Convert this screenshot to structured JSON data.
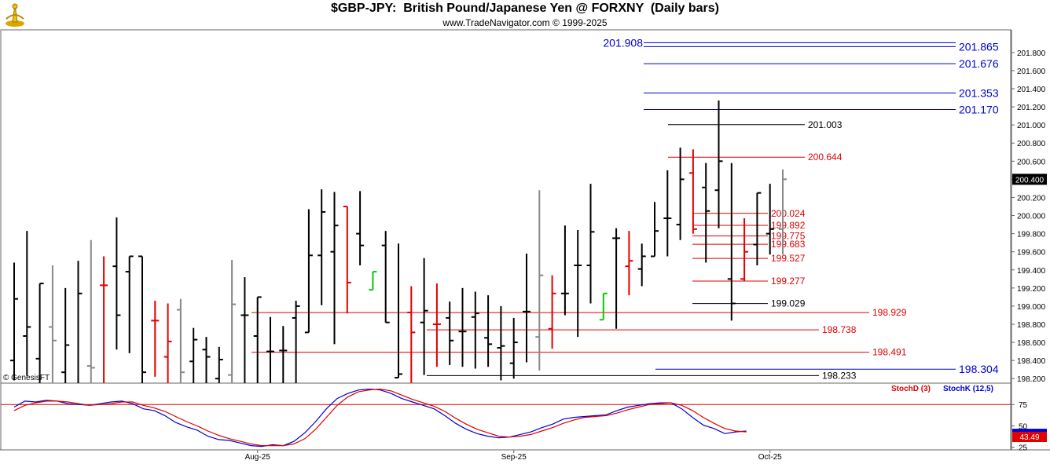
{
  "header": {
    "title": "$GBP-JPY:  British Pound/Japanese Yen @ FORXNY  (Daily bars)",
    "subtitle": "www.TradeNavigator.com © 1999-2025",
    "watermark": "© GenesisFT"
  },
  "colors": {
    "up_bar": "#000000",
    "down_bar": "#e00000",
    "neutral_bar": "#888888",
    "signal_bar": "#00cc00",
    "blue_level": "#0000cc",
    "black_level": "#000000",
    "red_level": "#e00000",
    "stoch_k": "#0000cc",
    "stoch_d": "#e00000"
  },
  "chart_data": [
    {
      "type": "ohlc",
      "name": "price",
      "ylim": [
        198.15,
        202.05
      ],
      "y_ticks": [
        201.8,
        201.6,
        201.4,
        201.2,
        201.0,
        200.8,
        200.6,
        200.4,
        200.2,
        200.0,
        199.8,
        199.6,
        199.4,
        199.2,
        199.0,
        198.8,
        198.6,
        198.4,
        198.2
      ],
      "y_tick_labels": [
        "201.800",
        "201.600",
        "201.400",
        "201.200",
        "201.000",
        "200.800",
        "200.600",
        "200.400",
        "200.200",
        "200.000",
        "199.800",
        "199.600",
        "199.400",
        "199.200",
        "199.000",
        "198.800",
        "198.600",
        "198.400",
        "198.200"
      ],
      "last_price_label": "200.400",
      "last_price": 200.4,
      "x_labels": [
        {
          "label": "Aug-25",
          "bar_index": 19
        },
        {
          "label": "Sep-25",
          "bar_index": 39
        },
        {
          "label": "Oct-25",
          "bar_index": 59
        }
      ],
      "bars": [
        {
          "o": 198.4,
          "h": 199.48,
          "l": 198.18,
          "c": 199.08,
          "color": "up"
        },
        {
          "o": 198.67,
          "h": 199.83,
          "l": 198.23,
          "c": 198.77,
          "color": "up"
        },
        {
          "o": 198.42,
          "h": 199.25,
          "l": 197.95,
          "c": 199.25,
          "color": "up"
        },
        {
          "o": 198.77,
          "h": 199.45,
          "l": 198.0,
          "c": 198.62,
          "color": "neutral"
        },
        {
          "o": 198.27,
          "h": 199.2,
          "l": 198.0,
          "c": 198.57,
          "color": "up"
        },
        {
          "o": 198.14,
          "h": 199.5,
          "l": 198.0,
          "c": 199.14,
          "color": "up"
        },
        {
          "o": 198.34,
          "h": 199.73,
          "l": 198.12,
          "c": 198.32,
          "color": "neutral"
        },
        {
          "o": 199.23,
          "h": 199.55,
          "l": 198.0,
          "c": 199.23,
          "color": "down"
        },
        {
          "o": 199.44,
          "h": 199.98,
          "l": 198.52,
          "c": 198.9,
          "color": "up"
        },
        {
          "o": 199.38,
          "h": 199.55,
          "l": 198.48,
          "c": 199.55,
          "color": "up"
        },
        {
          "o": 199.55,
          "h": 199.55,
          "l": 198.0,
          "c": 198.27,
          "color": "up"
        },
        {
          "o": 198.84,
          "h": 199.06,
          "l": 198.22,
          "c": 198.84,
          "color": "down"
        },
        {
          "o": 198.44,
          "h": 199.03,
          "l": 198.0,
          "c": 198.61,
          "color": "down"
        },
        {
          "o": 198.96,
          "h": 199.08,
          "l": 198.0,
          "c": 198.27,
          "color": "neutral"
        },
        {
          "o": 198.39,
          "h": 198.76,
          "l": 198.0,
          "c": 198.63,
          "color": "up"
        },
        {
          "o": 198.52,
          "h": 198.66,
          "l": 198.0,
          "c": 198.44,
          "color": "up"
        },
        {
          "o": 198.2,
          "h": 198.55,
          "l": 198.0,
          "c": 198.41,
          "color": "up"
        },
        {
          "o": 198.24,
          "h": 199.51,
          "l": 198.0,
          "c": 199.02,
          "color": "neutral"
        },
        {
          "o": 198.9,
          "h": 199.32,
          "l": 198.0,
          "c": 198.9,
          "color": "up"
        },
        {
          "o": 198.67,
          "h": 199.1,
          "l": 198.0,
          "c": 199.1,
          "color": "up"
        },
        {
          "o": 198.5,
          "h": 198.88,
          "l": 198.0,
          "c": 198.5,
          "color": "up"
        },
        {
          "o": 198.51,
          "h": 198.78,
          "l": 198.0,
          "c": 198.51,
          "color": "up"
        },
        {
          "o": 198.87,
          "h": 199.06,
          "l": 198.0,
          "c": 199.0,
          "color": "up"
        },
        {
          "o": 198.71,
          "h": 200.07,
          "l": 198.71,
          "c": 199.56,
          "color": "up"
        },
        {
          "o": 199.56,
          "h": 200.29,
          "l": 199.01,
          "c": 200.04,
          "color": "up"
        },
        {
          "o": 199.6,
          "h": 200.26,
          "l": 198.58,
          "c": 199.89,
          "color": "up"
        },
        {
          "o": 200.1,
          "h": 200.1,
          "l": 198.92,
          "c": 199.26,
          "color": "down"
        },
        {
          "o": 199.8,
          "h": 200.27,
          "l": 199.45,
          "c": 199.67,
          "color": "up"
        },
        {
          "o": 199.18,
          "h": 199.38,
          "l": 199.18,
          "c": 199.38,
          "color": "signal"
        },
        {
          "o": 199.67,
          "h": 199.83,
          "l": 198.82,
          "c": 198.82,
          "color": "up"
        },
        {
          "o": 198.21,
          "h": 199.69,
          "l": 198.21,
          "c": 198.25,
          "color": "up"
        },
        {
          "o": 198.93,
          "h": 199.22,
          "l": 198.04,
          "c": 198.71,
          "color": "down"
        },
        {
          "o": 198.82,
          "h": 199.53,
          "l": 198.24,
          "c": 198.95,
          "color": "up"
        },
        {
          "o": 198.8,
          "h": 199.25,
          "l": 198.33,
          "c": 198.8,
          "color": "down"
        },
        {
          "o": 198.87,
          "h": 199.05,
          "l": 198.35,
          "c": 198.62,
          "color": "up"
        },
        {
          "o": 198.72,
          "h": 199.2,
          "l": 198.33,
          "c": 198.72,
          "color": "up"
        },
        {
          "o": 198.88,
          "h": 199.16,
          "l": 198.31,
          "c": 198.92,
          "color": "up"
        },
        {
          "o": 198.65,
          "h": 199.12,
          "l": 198.33,
          "c": 198.58,
          "color": "up"
        },
        {
          "o": 198.54,
          "h": 199.0,
          "l": 198.18,
          "c": 198.56,
          "color": "up"
        },
        {
          "o": 198.37,
          "h": 198.87,
          "l": 198.2,
          "c": 198.6,
          "color": "up"
        },
        {
          "o": 198.94,
          "h": 199.58,
          "l": 198.38,
          "c": 198.94,
          "color": "up"
        },
        {
          "o": 198.66,
          "h": 200.28,
          "l": 198.29,
          "c": 199.34,
          "color": "neutral"
        },
        {
          "o": 198.75,
          "h": 199.34,
          "l": 198.53,
          "c": 199.14,
          "color": "down"
        },
        {
          "o": 199.14,
          "h": 199.89,
          "l": 198.9,
          "c": 199.14,
          "color": "up"
        },
        {
          "o": 199.45,
          "h": 199.84,
          "l": 198.66,
          "c": 199.45,
          "color": "up"
        },
        {
          "o": 199.45,
          "h": 200.35,
          "l": 199.03,
          "c": 199.82,
          "color": "up"
        },
        {
          "o": 198.85,
          "h": 199.14,
          "l": 198.85,
          "c": 199.14,
          "color": "signal"
        },
        {
          "o": 199.75,
          "h": 199.86,
          "l": 198.75,
          "c": 199.75,
          "color": "up"
        },
        {
          "o": 199.44,
          "h": 199.83,
          "l": 199.12,
          "c": 199.5,
          "color": "down"
        },
        {
          "o": 199.41,
          "h": 199.69,
          "l": 199.22,
          "c": 199.55,
          "color": "up"
        },
        {
          "o": 199.55,
          "h": 200.15,
          "l": 199.55,
          "c": 199.83,
          "color": "up"
        },
        {
          "o": 199.97,
          "h": 200.5,
          "l": 199.55,
          "c": 199.97,
          "color": "up"
        },
        {
          "o": 199.9,
          "h": 200.75,
          "l": 199.73,
          "c": 200.4,
          "color": "up"
        },
        {
          "o": 200.47,
          "h": 200.73,
          "l": 199.8,
          "c": 199.85,
          "color": "down"
        },
        {
          "o": 200.31,
          "h": 200.58,
          "l": 199.48,
          "c": 200.05,
          "color": "up"
        },
        {
          "o": 200.28,
          "h": 201.27,
          "l": 199.86,
          "c": 200.6,
          "color": "up"
        },
        {
          "o": 199.3,
          "h": 200.58,
          "l": 198.84,
          "c": 199.03,
          "color": "up"
        },
        {
          "o": 199.3,
          "h": 199.97,
          "l": 199.28,
          "c": 199.6,
          "color": "down"
        },
        {
          "o": 199.68,
          "h": 200.25,
          "l": 199.45,
          "c": 200.25,
          "color": "up"
        },
        {
          "o": 199.8,
          "h": 200.35,
          "l": 199.57,
          "c": 199.85,
          "color": "up"
        },
        {
          "o": 199.85,
          "h": 200.51,
          "l": 199.57,
          "c": 200.4,
          "color": "neutral"
        }
      ],
      "levels": [
        {
          "label": "201.908",
          "value": 201.908,
          "color": "blue",
          "label_side": "left"
        },
        {
          "label": "201.865",
          "value": 201.865,
          "color": "blue",
          "label_side": "right"
        },
        {
          "label": "201.676",
          "value": 201.676,
          "color": "blue",
          "label_side": "right"
        },
        {
          "label": "201.353",
          "value": 201.353,
          "color": "blue",
          "label_side": "right"
        },
        {
          "label": "201.170",
          "value": 201.17,
          "color": "blue",
          "label_side": "right"
        },
        {
          "label": "201.003",
          "value": 201.003,
          "color": "black",
          "label_side": "mid"
        },
        {
          "label": "200.644",
          "value": 200.644,
          "color": "red",
          "label_side": "mid"
        },
        {
          "label": "200.024",
          "value": 200.024,
          "color": "red",
          "label_side": "short"
        },
        {
          "label": "199.892",
          "value": 199.892,
          "color": "red",
          "label_side": "short"
        },
        {
          "label": "199.775",
          "value": 199.775,
          "color": "red",
          "label_side": "short"
        },
        {
          "label": "199.683",
          "value": 199.683,
          "color": "red",
          "label_side": "short"
        },
        {
          "label": "199.527",
          "value": 199.527,
          "color": "red",
          "label_side": "short"
        },
        {
          "label": "199.277",
          "value": 199.277,
          "color": "red",
          "label_side": "short"
        },
        {
          "label": "199.029",
          "value": 199.029,
          "color": "black",
          "label_side": "short"
        },
        {
          "label": "198.929",
          "value": 198.929,
          "color": "red",
          "label_side": "long"
        },
        {
          "label": "198.738",
          "value": 198.738,
          "color": "red",
          "label_side": "midlow"
        },
        {
          "label": "198.491",
          "value": 198.491,
          "color": "red",
          "label_side": "long"
        },
        {
          "label": "198.304",
          "value": 198.304,
          "color": "blue",
          "label_side": "right"
        },
        {
          "label": "198.233",
          "value": 198.233,
          "color": "black",
          "label_side": "midlow"
        }
      ]
    },
    {
      "type": "line",
      "name": "stochastic",
      "ylim": [
        22,
        100
      ],
      "y_ticks": [
        75,
        50,
        25
      ],
      "y_tick_labels": [
        "75",
        "50",
        "25"
      ],
      "reference_line": 75,
      "last_value_label": "43.49",
      "legend": [
        {
          "label": "StochD (3)",
          "color": "red"
        },
        {
          "label": "StochK (12,5)",
          "color": "blue"
        }
      ],
      "series": [
        {
          "name": "StochK (12,5)",
          "color": "blue",
          "values": [
            72,
            79,
            78,
            80,
            79,
            76,
            75,
            74,
            76,
            78,
            79,
            76,
            70,
            68,
            62,
            54,
            49,
            45,
            38,
            34,
            33,
            30,
            27,
            26,
            28,
            27,
            32,
            42,
            55,
            70,
            82,
            88,
            92,
            93,
            92,
            88,
            82,
            78,
            74,
            70,
            62,
            53,
            46,
            41,
            38,
            36,
            37,
            40,
            43,
            48,
            52,
            58,
            60,
            61,
            62,
            63,
            68,
            72,
            74,
            76,
            77,
            77,
            70,
            60,
            51,
            47,
            41,
            43,
            44
          ]
        },
        {
          "name": "StochD (3)",
          "color": "red",
          "values": [
            68,
            74,
            77,
            79,
            79,
            78,
            76,
            74,
            75,
            76,
            78,
            78,
            74,
            71,
            67,
            61,
            55,
            50,
            44,
            39,
            35,
            32,
            29,
            27,
            27,
            27,
            29,
            35,
            46,
            60,
            74,
            84,
            90,
            92,
            93,
            91,
            86,
            81,
            77,
            73,
            67,
            59,
            52,
            46,
            42,
            38,
            37,
            38,
            40,
            44,
            48,
            53,
            57,
            60,
            61,
            62,
            65,
            69,
            72,
            75,
            76,
            77,
            74,
            68,
            60,
            53,
            47,
            44,
            43
          ]
        }
      ]
    }
  ]
}
